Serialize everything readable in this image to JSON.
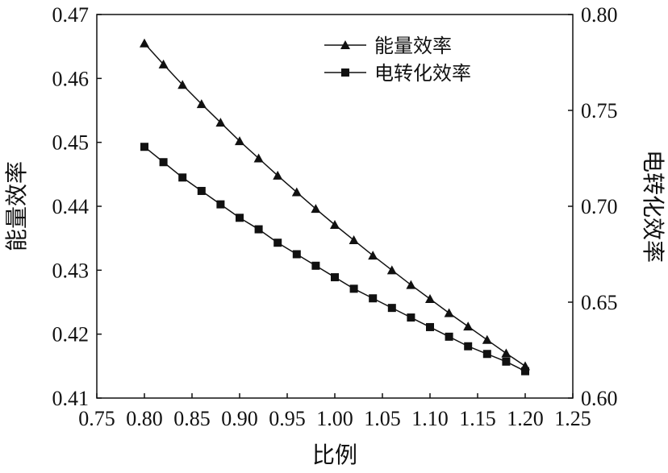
{
  "chart_data": {
    "type": "line",
    "xlabel": "比例",
    "ylabel_left": "能量效率",
    "ylabel_right": "电转化效率",
    "xlim": [
      0.75,
      1.25
    ],
    "ylim_left": [
      0.41,
      0.47
    ],
    "ylim_right": [
      0.6,
      0.8
    ],
    "x_ticks": [
      "0.75",
      "0.80",
      "0.85",
      "0.90",
      "0.95",
      "1.00",
      "1.05",
      "1.10",
      "1.15",
      "1.20",
      "1.25"
    ],
    "y_left_ticks": [
      "0.41",
      "0.42",
      "0.43",
      "0.44",
      "0.45",
      "0.46",
      "0.47"
    ],
    "y_right_ticks": [
      "0.60",
      "0.65",
      "0.70",
      "0.75",
      "0.80"
    ],
    "grid": false,
    "legend_position": "top-right",
    "x": [
      0.8,
      0.82,
      0.84,
      0.86,
      0.88,
      0.9,
      0.92,
      0.94,
      0.96,
      0.98,
      1.0,
      1.02,
      1.04,
      1.06,
      1.08,
      1.1,
      1.12,
      1.14,
      1.16,
      1.18,
      1.2
    ],
    "series": [
      {
        "name": "能量效率",
        "axis": "left",
        "marker": "triangle",
        "values": [
          0.4655,
          0.4622,
          0.459,
          0.456,
          0.4531,
          0.4502,
          0.4475,
          0.4448,
          0.4422,
          0.4396,
          0.4371,
          0.4347,
          0.4323,
          0.43,
          0.4277,
          0.4255,
          0.4233,
          0.4212,
          0.4191,
          0.417,
          0.415
        ]
      },
      {
        "name": "电转化效率",
        "axis": "right",
        "marker": "square",
        "values": [
          0.731,
          0.723,
          0.715,
          0.708,
          0.701,
          0.694,
          0.688,
          0.681,
          0.675,
          0.669,
          0.663,
          0.657,
          0.652,
          0.647,
          0.642,
          0.637,
          0.632,
          0.627,
          0.623,
          0.619,
          0.614
        ]
      }
    ]
  }
}
